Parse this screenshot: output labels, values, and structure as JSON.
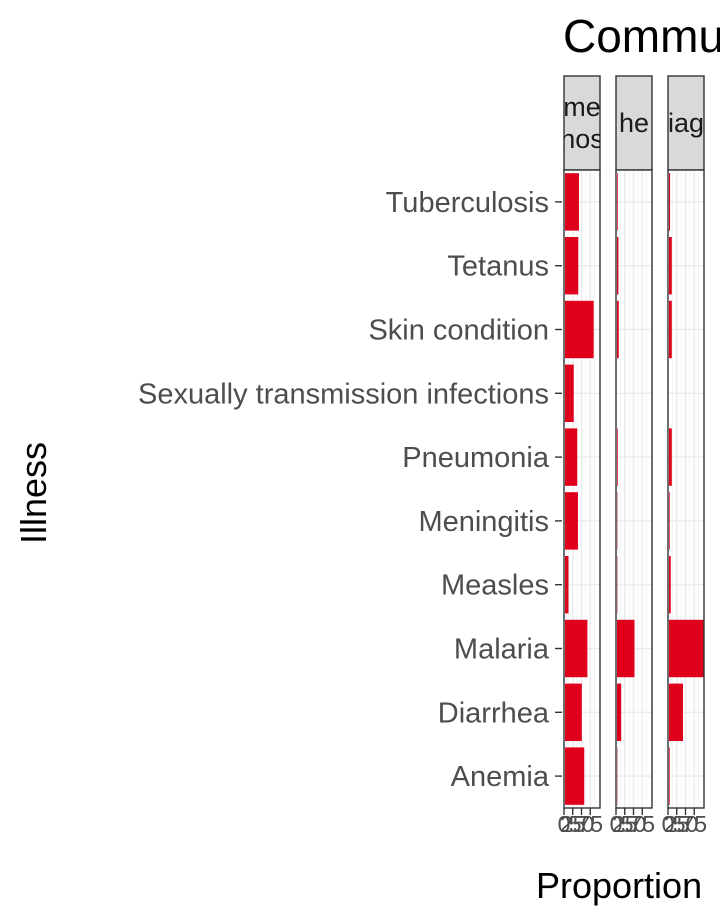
{
  "chart_data": {
    "type": "bar",
    "orientation": "horizontal",
    "title": "Commu",
    "xlabel": "Proportion",
    "ylabel": "Illness",
    "categories": [
      "Tuberculosis",
      "Tetanus",
      "Skin condition",
      "Sexually transmission infections",
      "Pneumonia",
      "Meningitis",
      "Measles",
      "Malaria",
      "Diarrhea",
      "Anemia"
    ],
    "x_ticks": [
      0,
      25,
      50,
      75
    ],
    "x_tick_labels": [
      "0",
      "25",
      "50",
      "75"
    ],
    "xlim": [
      0,
      100
    ],
    "grid": true,
    "bar_color": "#E0001B",
    "panels": [
      {
        "strip": [
          "me",
          "nos"
        ],
        "values": [
          0.4,
          0.38,
          0.82,
          0.25,
          0.35,
          0.37,
          0.1,
          0.64,
          0.48,
          0.55
        ]
      },
      {
        "strip": [
          "he"
        ],
        "values": [
          0.02,
          0.04,
          0.05,
          0.0,
          0.02,
          0.01,
          0.01,
          0.5,
          0.12,
          0.01
        ]
      },
      {
        "strip": [
          "iag"
        ],
        "values": [
          0.03,
          0.08,
          0.08,
          0.0,
          0.08,
          0.02,
          0.05,
          1.05,
          0.4,
          0.02
        ]
      }
    ]
  }
}
